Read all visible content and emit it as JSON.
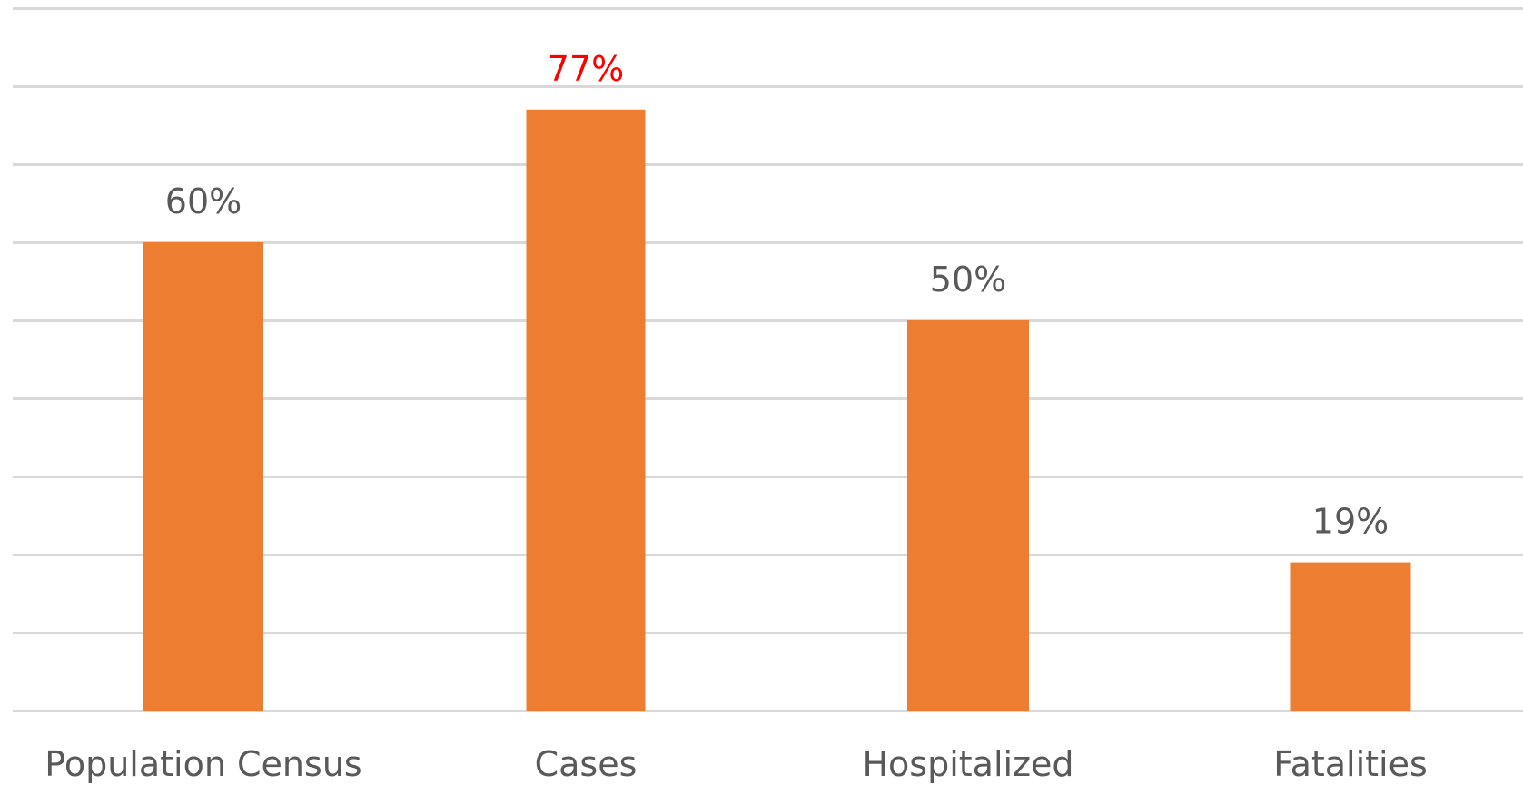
{
  "chart_data": {
    "type": "bar",
    "title": "",
    "xlabel": "",
    "ylabel": "",
    "categories": [
      "Population Census",
      "Cases",
      "Hospitalized",
      "Fatalities"
    ],
    "values": [
      60,
      77,
      50,
      19
    ],
    "data_labels": [
      "60%",
      "77%",
      "50%",
      "19%"
    ],
    "ylim": [
      0,
      90
    ],
    "grid": true,
    "gridline_step": 10,
    "y_tick_labels_visible": false,
    "legend": "none",
    "colors": {
      "bar": "#ed7d31",
      "gridline": "#d9d9d9",
      "label_default": "#595959",
      "label_highlight": "#ff0000",
      "category_text": "#595959"
    },
    "highlighted_category": "Cases"
  }
}
